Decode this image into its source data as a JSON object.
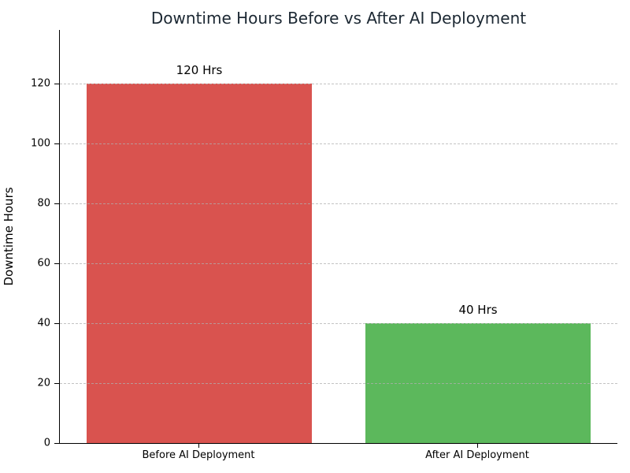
{
  "chart_data": {
    "type": "bar",
    "title": "Downtime Hours Before vs After AI Deployment",
    "xlabel": "",
    "ylabel": "Downtime Hours",
    "categories": [
      "Before AI Deployment",
      "After AI Deployment"
    ],
    "values": [
      120,
      40
    ],
    "bar_value_labels": [
      "120 Hrs",
      "40 Hrs"
    ],
    "bar_colors": [
      "#d9534f",
      "#5cb85c"
    ],
    "yticks": [
      0,
      20,
      40,
      60,
      80,
      100,
      120
    ],
    "ylim": [
      0,
      138
    ],
    "grid": "horizontal-dashed",
    "grid_color": "#cccccc",
    "title_color": "#1c2833",
    "legend": "none",
    "spines": [
      "left",
      "bottom"
    ]
  }
}
